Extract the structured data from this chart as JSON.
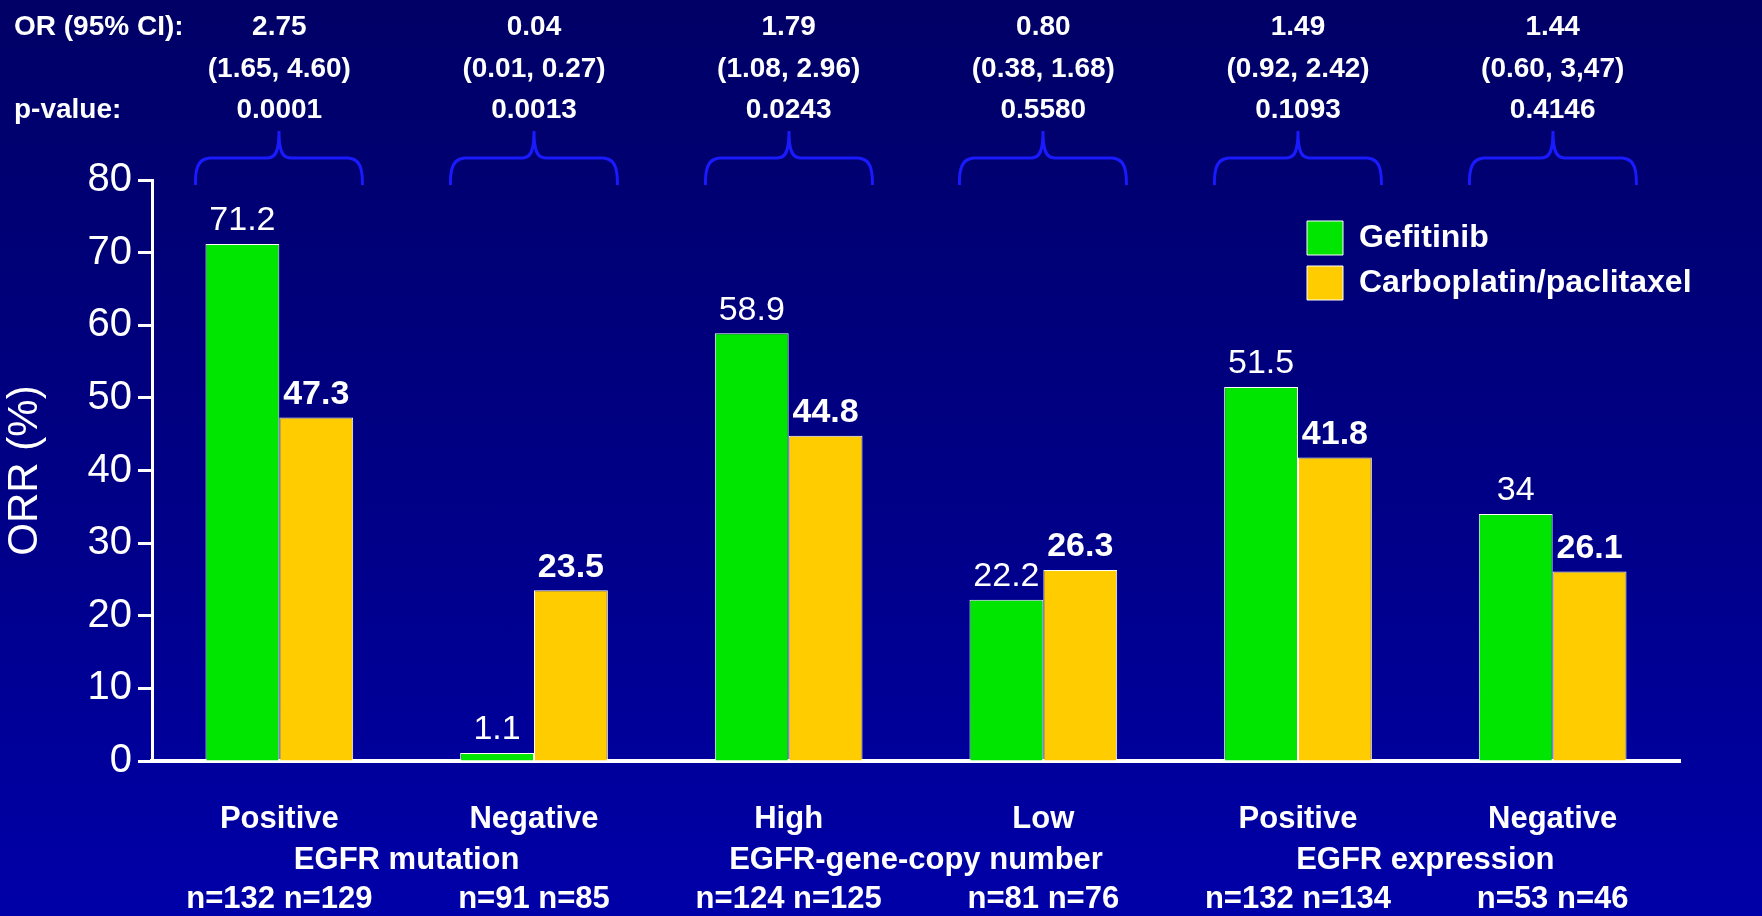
{
  "chart_data": {
    "type": "bar",
    "ylabel": "ORR (%)",
    "categories": [
      "Positive",
      "Negative",
      "High",
      "Low",
      "Positive",
      "Negative"
    ],
    "series": [
      {
        "name": "Gefitinib",
        "color": "#00e600",
        "values": [
          71.2,
          1.1,
          58.9,
          22.2,
          51.5,
          34
        ]
      },
      {
        "name": "Carboplatin/paclitaxel",
        "color": "#ffcc00",
        "values": [
          47.3,
          23.5,
          44.8,
          26.3,
          41.8,
          26.1
        ]
      }
    ],
    "ylim": [
      0,
      80
    ],
    "yticks": [
      0,
      10,
      20,
      30,
      40,
      50,
      60,
      70,
      80
    ],
    "data_labels": true,
    "legend": "top right",
    "grid": false,
    "annotations": [
      "OR (95% CI):",
      "p-value:",
      "2.75",
      "(1.65, 4.60)",
      "0.0001",
      "0.04",
      "(0.01, 0.27)",
      "0.0013",
      "1.79",
      "(1.08, 2.96)",
      "0.0243",
      "0.80",
      "(0.38, 1.68)",
      "0.5580",
      "1.49",
      "(0.92, 2.42)",
      "0.1093",
      "1.44",
      "(0.60, 3,47)",
      "0.4146",
      "EGFR mutation",
      "EGFR-gene-copy number",
      "EGFR expression",
      "n=132 n=129",
      "n=91 n=85",
      "n=124 n=125",
      "n=81 n=76",
      "n=132 n=134",
      "n=53 n=46"
    ]
  }
}
